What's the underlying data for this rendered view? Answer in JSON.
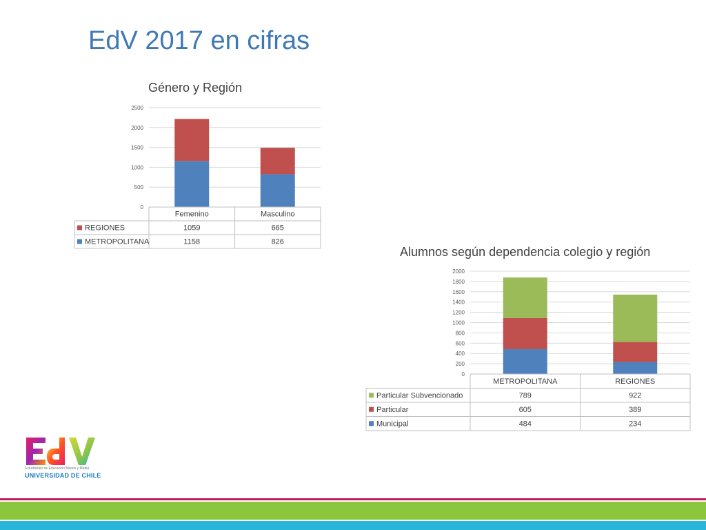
{
  "slide": {
    "title": "EdV 2017 en cifras"
  },
  "logo": {
    "letters": "EdV",
    "subtitle": "Estudiantes de Educación Básica y Media",
    "university": "UNIVERSIDAD DE CHILE"
  },
  "colors": {
    "blue": "#4f81bd",
    "red": "#c0504d",
    "green": "#9bbb59",
    "title_blue": "#3e79b5",
    "band_pink": "#c2185b",
    "band_green": "#8cc63f",
    "band_blue": "#29b6d9"
  },
  "chart_data": [
    {
      "type": "bar",
      "stacked": true,
      "title": "Género y Región",
      "categories": [
        "Femenino",
        "Masculino"
      ],
      "ylim": [
        0,
        2500
      ],
      "yticks": [
        0,
        500,
        1000,
        1500,
        2000,
        2500
      ],
      "grid": true,
      "legend": "data-table",
      "series": [
        {
          "name": "METROPOLITANA",
          "values": [
            1158,
            826
          ],
          "color": "#4f81bd"
        },
        {
          "name": "REGIONES",
          "values": [
            1059,
            665
          ],
          "color": "#c0504d"
        }
      ],
      "table_order": [
        "REGIONES",
        "METROPOLITANA"
      ]
    },
    {
      "type": "bar",
      "stacked": true,
      "title": "Alumnos según dependencia colegio y región",
      "categories": [
        "METROPOLITANA",
        "REGIONES"
      ],
      "ylim": [
        0,
        2000
      ],
      "yticks": [
        0,
        200,
        400,
        600,
        800,
        1000,
        1200,
        1400,
        1600,
        1800,
        2000
      ],
      "grid": true,
      "legend": "data-table",
      "series": [
        {
          "name": "Municipal",
          "values": [
            484,
            234
          ],
          "color": "#4f81bd"
        },
        {
          "name": "Particular",
          "values": [
            605,
            389
          ],
          "color": "#c0504d"
        },
        {
          "name": "Particular Subvencionado",
          "values": [
            789,
            922
          ],
          "color": "#9bbb59"
        }
      ],
      "table_order": [
        "Particular Subvencionado",
        "Particular",
        "Municipal"
      ]
    }
  ]
}
